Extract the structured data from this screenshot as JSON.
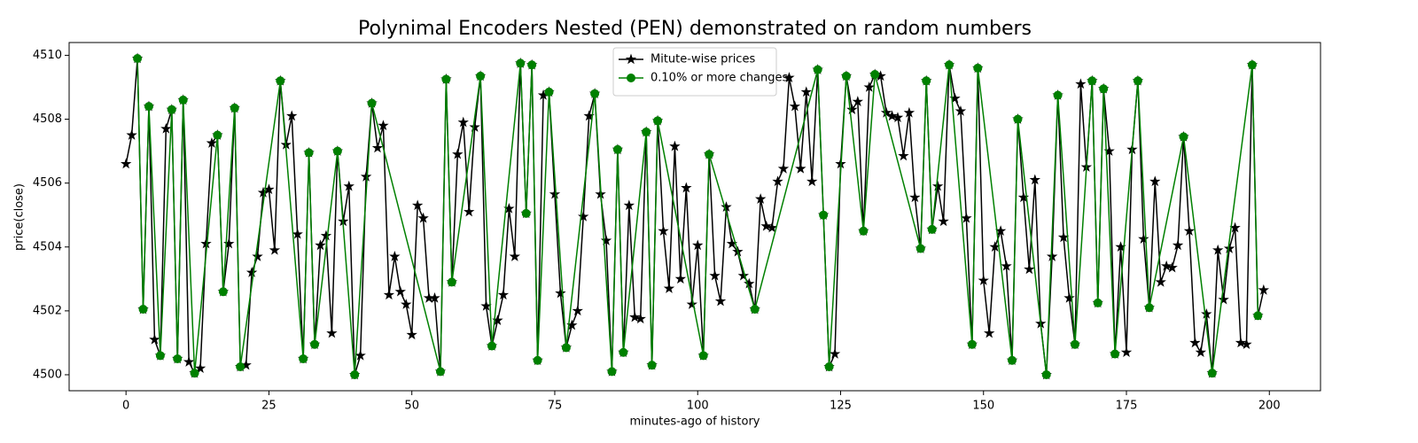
{
  "chart_data": {
    "type": "line",
    "title": "Polynimal Encoders Nested (PEN) demonstrated on random numbers",
    "xlabel": "minutes-ago of history",
    "ylabel": "price(close)",
    "xlim": [
      -9.95,
      208.95
    ],
    "ylim": [
      4499.5,
      4510.4
    ],
    "xticks": [
      0,
      25,
      50,
      75,
      100,
      125,
      150,
      175,
      200
    ],
    "yticks": [
      4500,
      4502,
      4504,
      4506,
      4508,
      4510
    ],
    "legend": "upper center",
    "series": [
      {
        "name": "Mitute-wise prices",
        "color": "#000000",
        "marker": "star",
        "x": [
          0,
          1,
          2,
          3,
          4,
          5,
          6,
          7,
          8,
          9,
          10,
          11,
          12,
          13,
          14,
          15,
          16,
          17,
          18,
          19,
          20,
          21,
          22,
          23,
          24,
          25,
          26,
          27,
          28,
          29,
          30,
          31,
          32,
          33,
          34,
          35,
          36,
          37,
          38,
          39,
          40,
          41,
          42,
          43,
          44,
          45,
          46,
          47,
          48,
          49,
          50,
          51,
          52,
          53,
          54,
          55,
          56,
          57,
          58,
          59,
          60,
          61,
          62,
          63,
          64,
          65,
          66,
          67,
          68,
          69,
          70,
          71,
          72,
          73,
          74,
          75,
          76,
          77,
          78,
          79,
          80,
          81,
          82,
          83,
          84,
          85,
          86,
          87,
          88,
          89,
          90,
          91,
          92,
          93,
          94,
          95,
          96,
          97,
          98,
          99,
          100,
          101,
          102,
          103,
          104,
          105,
          106,
          107,
          108,
          109,
          110,
          111,
          112,
          113,
          114,
          115,
          116,
          117,
          118,
          119,
          120,
          121,
          122,
          123,
          124,
          125,
          126,
          127,
          128,
          129,
          130,
          131,
          132,
          133,
          134,
          135,
          136,
          137,
          138,
          139,
          140,
          141,
          142,
          143,
          144,
          145,
          146,
          147,
          148,
          149,
          150,
          151,
          152,
          153,
          154,
          155,
          156,
          157,
          158,
          159,
          160,
          161,
          162,
          163,
          164,
          165,
          166,
          167,
          168,
          169,
          170,
          171,
          172,
          173,
          174,
          175,
          176,
          177,
          178,
          179,
          180,
          181,
          182,
          183,
          184,
          185,
          186,
          187,
          188,
          189,
          190,
          191,
          192,
          193,
          194,
          195,
          196,
          197,
          198,
          199
        ],
        "values": [
          4506.6,
          4507.5,
          4509.9,
          4502.05,
          4508.4,
          4501.1,
          4500.6,
          4507.7,
          4508.3,
          4500.5,
          4508.6,
          4500.4,
          4500.05,
          4500.2,
          4504.1,
          4507.25,
          4507.5,
          4502.6,
          4504.1,
          4508.35,
          4500.25,
          4500.3,
          4503.2,
          4503.7,
          4505.7,
          4505.8,
          4503.9,
          4509.2,
          4507.2,
          4508.1,
          4504.4,
          4500.5,
          4506.95,
          4500.95,
          4504.05,
          4504.35,
          4501.3,
          4507.0,
          4504.8,
          4505.9,
          4500.0,
          4500.6,
          4506.2,
          4508.5,
          4507.1,
          4507.8,
          4502.5,
          4503.7,
          4502.6,
          4502.2,
          4501.25,
          4505.3,
          4504.9,
          4502.4,
          4502.4,
          4500.1,
          4509.25,
          4502.9,
          4506.9,
          4507.9,
          4505.1,
          4507.75,
          4509.35,
          4502.15,
          4500.9,
          4501.7,
          4502.5,
          4505.2,
          4503.7,
          4509.75,
          4505.05,
          4509.7,
          4500.45,
          4508.75,
          4508.85,
          4505.65,
          4502.55,
          4500.85,
          4501.55,
          4502.0,
          4504.95,
          4508.1,
          4508.8,
          4505.65,
          4504.2,
          4500.1,
          4507.05,
          4500.7,
          4505.3,
          4501.8,
          4501.75,
          4507.6,
          4500.3,
          4507.95,
          4504.5,
          4502.7,
          4507.15,
          4503.0,
          4505.85,
          4502.2,
          4504.05,
          4500.6,
          4506.9,
          4503.1,
          4502.3,
          4505.25,
          4504.1,
          4503.85,
          4503.1,
          4502.85,
          4502.05,
          4505.5,
          4504.65,
          4504.6,
          4506.05,
          4506.45,
          4509.3,
          4508.4,
          4506.45,
          4508.85,
          4506.05,
          4509.55,
          4505.0,
          4500.25,
          4500.65,
          4506.6,
          4509.35,
          4508.3,
          4508.55,
          4504.5,
          4509.0,
          4509.4,
          4509.35,
          4508.2,
          4508.1,
          4508.05,
          4506.85,
          4508.2,
          4505.55,
          4503.95,
          4509.2,
          4504.55,
          4505.9,
          4504.8,
          4509.7,
          4508.65,
          4508.25,
          4504.9,
          4500.95,
          4509.6,
          4502.95,
          4501.3,
          4504.0,
          4504.5,
          4503.4,
          4500.45,
          4508.0,
          4505.55,
          4503.3,
          4506.1,
          4501.6,
          4500.0,
          4503.7,
          4508.75,
          4504.3,
          4502.4,
          4500.95,
          4509.1,
          4506.5,
          4509.2,
          4502.25,
          4508.95,
          4507.0,
          4500.65,
          4504.0,
          4500.7,
          4507.05,
          4509.2,
          4504.25,
          4502.1,
          4506.05,
          4502.9,
          4503.4,
          4503.35,
          4504.05,
          4507.45,
          4504.5,
          4501.0,
          4500.7,
          4501.9,
          4500.05,
          4503.9,
          4502.35,
          4503.95,
          4504.6,
          4501.0,
          4500.95,
          4509.7,
          4501.85,
          4502.65
        ]
      },
      {
        "name": "0.10% or more changes",
        "color": "#008000",
        "marker": "circle",
        "x": [
          2,
          3,
          4,
          6,
          8,
          9,
          10,
          12,
          16,
          17,
          19,
          20,
          27,
          31,
          32,
          33,
          37,
          40,
          43,
          55,
          56,
          57,
          62,
          64,
          69,
          70,
          71,
          72,
          74,
          77,
          82,
          85,
          86,
          87,
          91,
          92,
          93,
          101,
          102,
          110,
          121,
          122,
          123,
          126,
          129,
          131,
          139,
          140,
          141,
          144,
          148,
          149,
          155,
          156,
          161,
          163,
          166,
          169,
          170,
          171,
          173,
          177,
          179,
          185,
          190,
          197,
          198
        ],
        "values": [
          4509.9,
          4502.05,
          4508.4,
          4500.6,
          4508.3,
          4500.5,
          4508.6,
          4500.05,
          4507.5,
          4502.6,
          4508.35,
          4500.25,
          4509.2,
          4500.5,
          4506.95,
          4500.95,
          4507.0,
          4500.0,
          4508.5,
          4500.1,
          4509.25,
          4502.9,
          4509.35,
          4500.9,
          4509.75,
          4505.05,
          4509.7,
          4500.45,
          4508.85,
          4500.85,
          4508.8,
          4500.1,
          4507.05,
          4500.7,
          4507.6,
          4500.3,
          4507.95,
          4500.6,
          4506.9,
          4502.05,
          4509.55,
          4505.0,
          4500.25,
          4509.35,
          4504.5,
          4509.4,
          4503.95,
          4509.2,
          4504.55,
          4509.7,
          4500.95,
          4509.6,
          4500.45,
          4508.0,
          4500.0,
          4508.75,
          4500.95,
          4509.2,
          4502.25,
          4508.95,
          4500.65,
          4509.2,
          4502.1,
          4507.45,
          4500.05,
          4509.7,
          4501.85
        ]
      }
    ]
  }
}
